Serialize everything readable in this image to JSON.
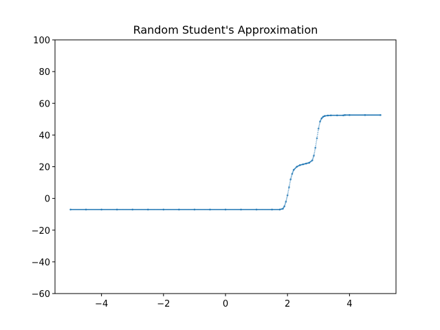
{
  "chart_data": {
    "type": "scatter",
    "title": "Random Student's Approximation",
    "xlabel": "",
    "ylabel": "",
    "xlim": [
      -5.5,
      5.5
    ],
    "ylim": [
      -60,
      100
    ],
    "x_ticks": [
      -4,
      -2,
      0,
      2,
      4
    ],
    "y_ticks": [
      -60,
      -40,
      -20,
      0,
      20,
      40,
      60,
      80,
      100
    ],
    "x_tick_labels": [
      "−4",
      "−2",
      "0",
      "2",
      "4"
    ],
    "y_tick_labels": [
      "−60",
      "−40",
      "−20",
      "0",
      "20",
      "40",
      "60",
      "80",
      "100"
    ],
    "grid": false,
    "color": "#1f77b4",
    "series": [
      {
        "x": [
          -5.0,
          -4.5,
          -4.0,
          -3.5,
          -3.0,
          -2.5,
          -2.0,
          -1.5,
          -1.0,
          -0.5,
          0.0,
          0.5,
          1.0,
          1.5,
          1.75,
          1.85,
          1.9,
          1.95,
          2.0,
          2.05,
          2.1,
          2.15,
          2.2,
          2.3,
          2.4,
          2.5,
          2.6,
          2.7,
          2.8,
          2.85,
          2.9,
          2.95,
          3.0,
          3.05,
          3.1,
          3.15,
          3.2,
          3.3,
          3.4,
          3.6,
          3.8,
          3.85,
          4.0,
          4.5,
          5.0
        ],
        "y": [
          -7,
          -7,
          -7,
          -7,
          -7,
          -7,
          -7,
          -7,
          -7,
          -7,
          -7,
          -7,
          -7,
          -7,
          -7,
          -6.5,
          -5,
          -2,
          2,
          7,
          12,
          15.5,
          18,
          20,
          21,
          21.5,
          22,
          22.5,
          24,
          27,
          32,
          38,
          44,
          48.5,
          50.5,
          51.5,
          52,
          52.3,
          52.4,
          52.4,
          52.4,
          52.6,
          52.6,
          52.6,
          52.6
        ]
      }
    ]
  }
}
